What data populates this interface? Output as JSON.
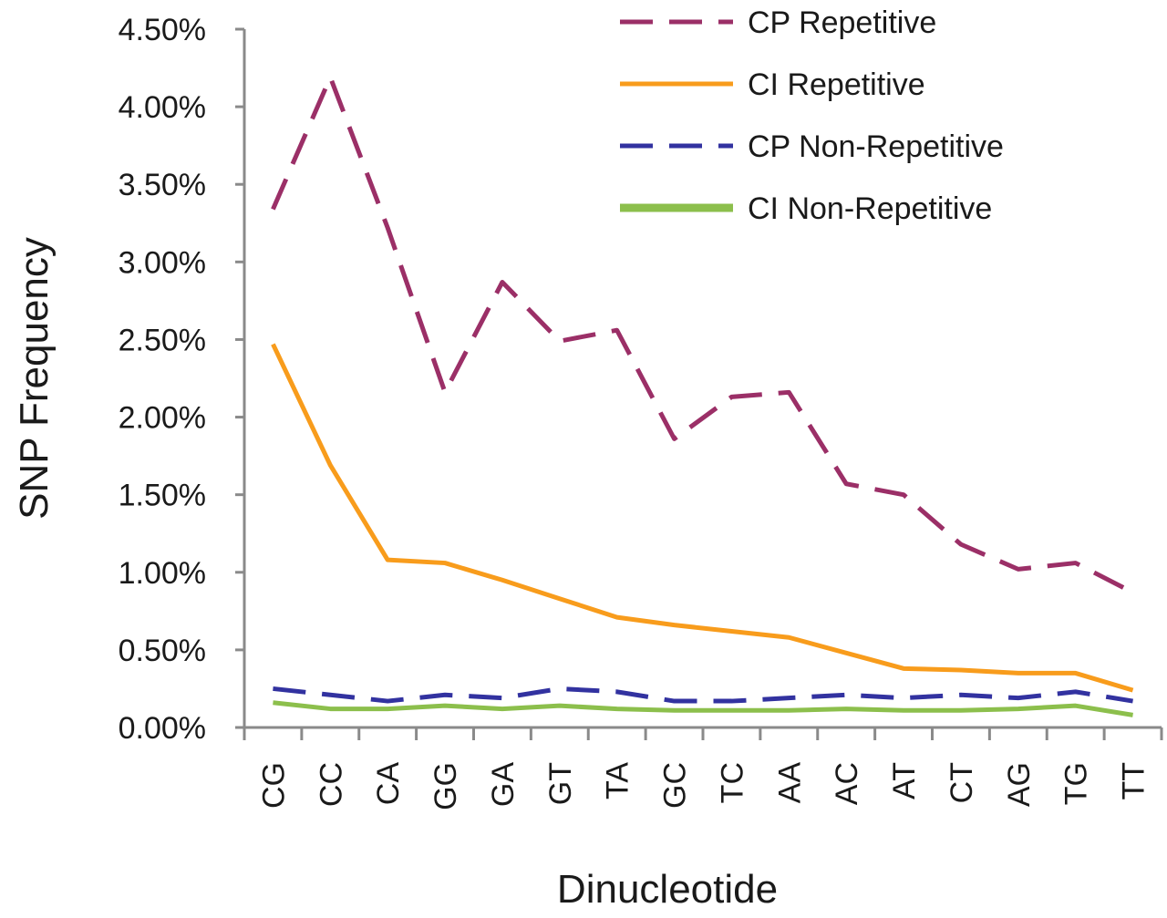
{
  "chart_data": {
    "type": "line",
    "x_label": "Dinucleotide",
    "y_label": "SNP Frequency",
    "categories": [
      "CG",
      "CC",
      "CA",
      "GG",
      "GA",
      "GT",
      "TA",
      "GC",
      "TC",
      "AA",
      "AC",
      "AT",
      "CT",
      "AG",
      "TG",
      "TT"
    ],
    "series": [
      {
        "name": "CP Repetitive",
        "color": "#9b2f67",
        "line_style": "dashed",
        "values": [
          3.34,
          4.19,
          3.22,
          2.16,
          2.87,
          2.49,
          2.56,
          1.86,
          2.13,
          2.16,
          1.57,
          1.5,
          1.18,
          1.02,
          1.06,
          0.87
        ]
      },
      {
        "name": "CI Repetitive",
        "color": "#f89c1c",
        "line_style": "solid",
        "values": [
          2.47,
          1.69,
          1.08,
          1.06,
          0.95,
          0.83,
          0.71,
          0.66,
          0.62,
          0.58,
          0.48,
          0.38,
          0.37,
          0.35,
          0.35,
          0.24
        ]
      },
      {
        "name": "CP Non-Repetitive",
        "color": "#3232a0",
        "line_style": "dashed",
        "values": [
          0.25,
          0.21,
          0.17,
          0.21,
          0.19,
          0.25,
          0.23,
          0.17,
          0.17,
          0.19,
          0.21,
          0.19,
          0.21,
          0.19,
          0.23,
          0.17
        ]
      },
      {
        "name": "CI Non-Repetitive",
        "color": "#8cbf4c",
        "line_style": "solid",
        "values": [
          0.16,
          0.12,
          0.12,
          0.14,
          0.12,
          0.14,
          0.12,
          0.11,
          0.11,
          0.11,
          0.12,
          0.11,
          0.11,
          0.12,
          0.14,
          0.08
        ]
      }
    ],
    "ylim": [
      0,
      4.5
    ],
    "yticks": [
      {
        "value": 0,
        "label": "0.00%"
      },
      {
        "value": 0.5,
        "label": "0.50%"
      },
      {
        "value": 1,
        "label": "1.00%"
      },
      {
        "value": 1.5,
        "label": "1.50%"
      },
      {
        "value": 2,
        "label": "2.00%"
      },
      {
        "value": 2.5,
        "label": "2.50%"
      },
      {
        "value": 3,
        "label": "3.00%"
      },
      {
        "value": 3.5,
        "label": "3.50%"
      },
      {
        "value": 4,
        "label": "4.00%"
      },
      {
        "value": 4.5,
        "label": "4.50%"
      }
    ],
    "grid": false,
    "legend": "top-right"
  }
}
